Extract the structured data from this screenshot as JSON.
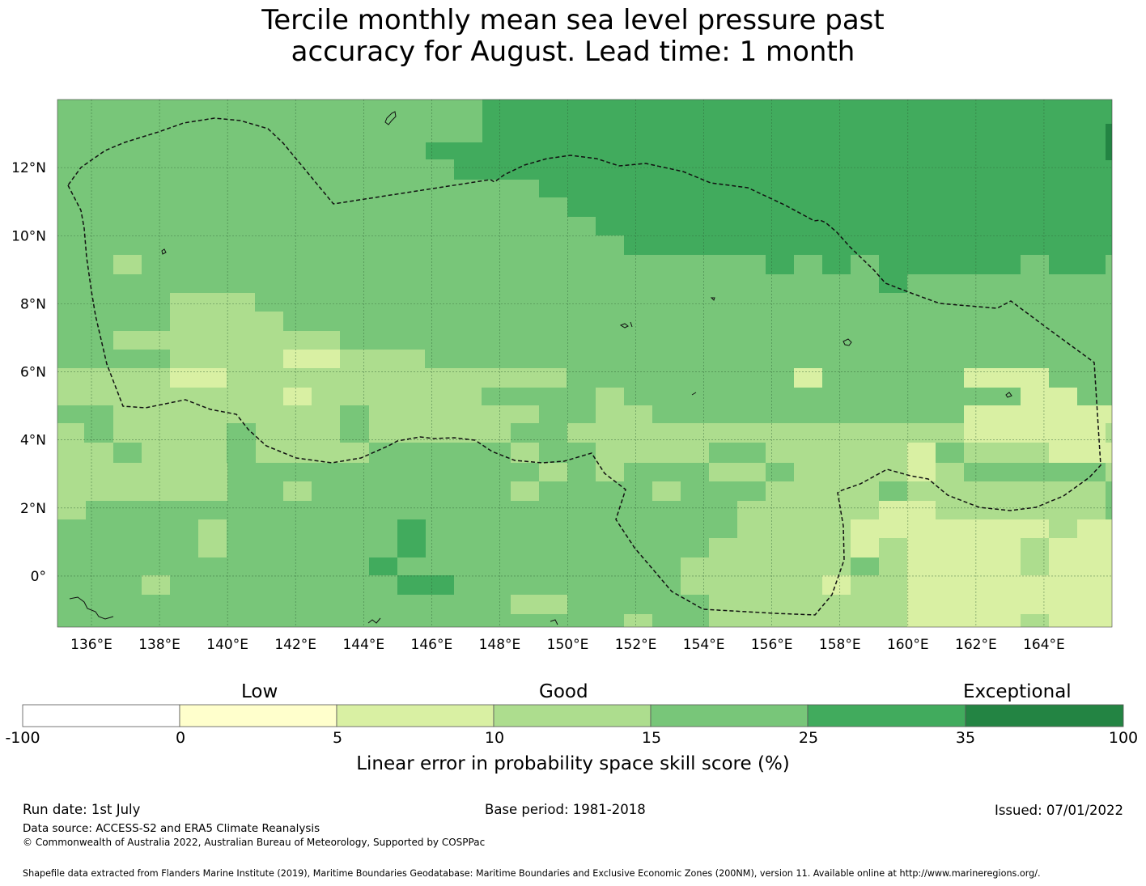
{
  "title_line1": "Tercile monthly mean sea level pressure past",
  "title_line2": "accuracy for August. Lead time: 1 month",
  "map": {
    "lon_range": [
      135,
      166
    ],
    "lat_range": [
      -1.5,
      14
    ],
    "lon_ticks": [
      "136°E",
      "138°E",
      "140°E",
      "142°E",
      "144°E",
      "146°E",
      "148°E",
      "150°E",
      "152°E",
      "154°E",
      "156°E",
      "158°E",
      "160°E",
      "162°E",
      "164°E"
    ],
    "lat_ticks": [
      "12°N",
      "10°N",
      "8°N",
      "6°N",
      "4°N",
      "2°N",
      "0°"
    ],
    "gridlines": true
  },
  "colorbar": {
    "category_labels": [
      "Low",
      "Good",
      "Exceptional"
    ],
    "tick_labels": [
      "-100",
      "0",
      "5",
      "10",
      "15",
      "25",
      "35",
      "100"
    ],
    "colors": [
      "#ffffff",
      "#ffffcc",
      "#d9f0a3",
      "#addd8e",
      "#78c679",
      "#41ab5d",
      "#238443"
    ],
    "axis_label": "Linear error in probability space skill score (%)"
  },
  "footer": {
    "run_date": "Run date: 1st July",
    "base_period": "Base period: 1981-2018",
    "issued": "Issued: 07/01/2022",
    "data_source": "Data source: ACCESS-S2 and ERA5 Climate Reanalysis",
    "copyright": "© Commonwealth of Australia 2022, Australian Bureau of Meteorology, Supported by COSPPac",
    "shapefile": "Shapefile data extracted from Flanders Marine Institute (2019), Maritime Boundaries Geodatabase: Maritime Boundaries and Exclusive Economic Zones (200NM), version 11. Available online at http://www.marineregions.org/."
  }
}
